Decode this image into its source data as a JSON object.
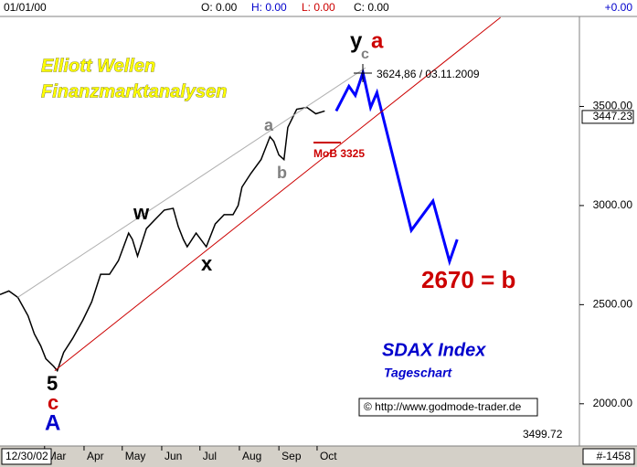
{
  "header": {
    "date": "01/01/00",
    "open": "O: 0.00",
    "high": "H: 0.00",
    "low": "L: 0.00",
    "close": "C: 0.00",
    "change": "+0.00"
  },
  "footer": {
    "start": "12/30/02",
    "count": "#-1458"
  },
  "chart_data": {
    "type": "line",
    "xlim": [
      26,
      481
    ],
    "ylim": [
      1787,
      3954
    ],
    "xticks": [
      {
        "value": 61,
        "label": "Mar"
      },
      {
        "value": 92,
        "label": "Apr"
      },
      {
        "value": 122,
        "label": "May"
      },
      {
        "value": 153,
        "label": "Jun"
      },
      {
        "value": 183,
        "label": "Jul"
      },
      {
        "value": 214,
        "label": "Aug"
      },
      {
        "value": 245,
        "label": "Sep"
      },
      {
        "value": 275,
        "label": "Oct"
      }
    ],
    "yticks": [
      {
        "value": 2000,
        "label": "2000.00"
      },
      {
        "value": 2500,
        "label": "2500.00"
      },
      {
        "value": 3000,
        "label": "3000.00"
      },
      {
        "value": 3500,
        "label": "3500.00"
      }
    ],
    "last_price": {
      "value": 3447.23,
      "label": "3447.23"
    },
    "series": [
      {
        "color": "#000000",
        "x": [
          26,
          33,
          40,
          48,
          53,
          58,
          62,
          68,
          71,
          76,
          83,
          91,
          98,
          105,
          112,
          119,
          127,
          130,
          134,
          141,
          148,
          155,
          162,
          166,
          170,
          173,
          180,
          188,
          195,
          202,
          209,
          213,
          216,
          223,
          231,
          238,
          241,
          245,
          249,
          252,
          259,
          267,
          274,
          281
        ],
        "values": [
          2551,
          2569,
          2537,
          2444,
          2352,
          2292,
          2227,
          2190,
          2167,
          2259,
          2329,
          2421,
          2514,
          2653,
          2653,
          2722,
          2861,
          2829,
          2745,
          2884,
          2931,
          2977,
          2986,
          2894,
          2829,
          2792,
          2861,
          2792,
          2907,
          2954,
          2954,
          3000,
          3093,
          3162,
          3232,
          3347,
          3324,
          3255,
          3232,
          3394,
          3486,
          3495,
          3463,
          3477
        ]
      },
      {
        "color": "#0000ff",
        "x": [
          290,
          300,
          305,
          311,
          317,
          322,
          349,
          366,
          379,
          385
        ],
        "values": [
          3477,
          3602,
          3556,
          3671,
          3495,
          3570,
          2875,
          3023,
          2718,
          2829
        ]
      },
      {
        "color": "#cc0000",
        "x": [
          69,
          419
        ],
        "values": [
          2167,
          3949
        ]
      },
      {
        "color": "#b0b0b0",
        "x": [
          40,
          313
        ],
        "values": [
          2537,
          3695
        ]
      }
    ],
    "annotations": [
      "Elliott Wellen",
      "Finanzmarktanalysen",
      "y",
      "c",
      "a",
      "3624,86 / 03.11.2009",
      "a",
      "b",
      "MoB 3325",
      "w",
      "x",
      "5",
      "c",
      "A",
      "2670 = b",
      "SDAX Index",
      "Tageschart",
      "© http://www.godmode-trader.de",
      "3499.72"
    ]
  }
}
